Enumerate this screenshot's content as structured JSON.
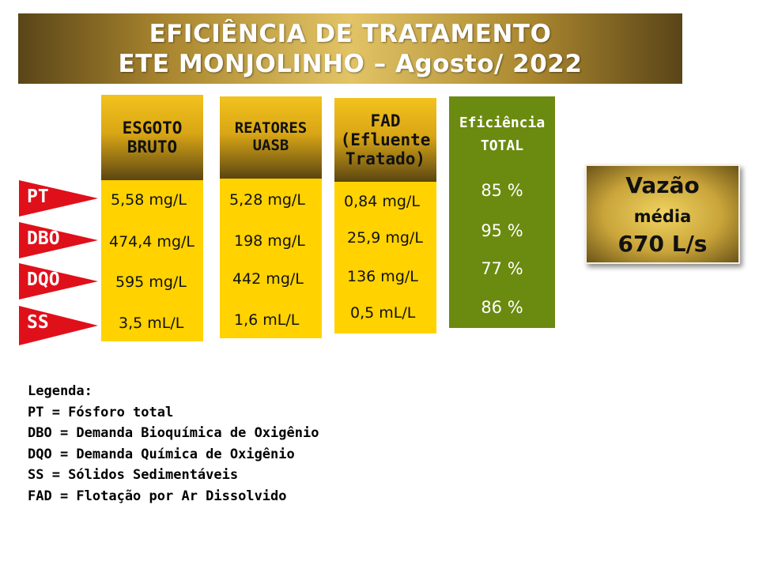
{
  "title": {
    "line1": "EFICIÊNCIA DE TRATAMENTO",
    "line2": "ETE MONJOLINHO – Agosto/ 2022"
  },
  "parameters": [
    {
      "label": "PT"
    },
    {
      "label": "DBO"
    },
    {
      "label": "DQO"
    },
    {
      "label": "SS"
    }
  ],
  "columns": {
    "esgoto": {
      "line1": "ESGOTO",
      "line2": "BRUTO",
      "values": [
        "5,58 mg/L",
        "474,4 mg/L",
        "595 mg/L",
        "3,5 mL/L"
      ]
    },
    "reatores": {
      "line1": "REATORES",
      "line2": "UASB",
      "values": [
        "5,28 mg/L",
        "198 mg/L",
        "442 mg/L",
        "1,6 mL/L"
      ]
    },
    "fad": {
      "line1": "FAD",
      "line2": "(Efluente",
      "line3": "Tratado)",
      "values": [
        "0,84 mg/L",
        "25,9 mg/L",
        "136 mg/L",
        "0,5 mL/L"
      ]
    },
    "eficiencia": {
      "line1": "Eficiência",
      "line2": "TOTAL",
      "values": [
        "85 %",
        "95 %",
        "77 %",
        "86 %"
      ]
    }
  },
  "vazao": {
    "line1": "Vazão",
    "line2": "média",
    "line3": "670 L/s"
  },
  "legend": {
    "heading": "Legenda:",
    "items": [
      "PT = Fósforo total",
      "DBO = Demanda Bioquímica de Oxigênio",
      "DQO = Demanda Química de Oxigênio",
      "SS = Sólidos Sedimentáveis",
      "FAD = Flotação por Ar Dissolvido"
    ]
  },
  "colors": {
    "value_yellow": "#ffd200",
    "efficiency_green": "#6b8a10",
    "flag_red": "#e0101a",
    "title_gold": "#c9a43a"
  }
}
